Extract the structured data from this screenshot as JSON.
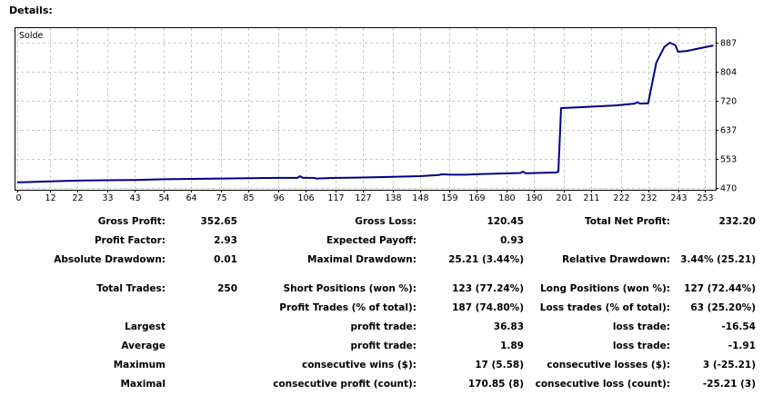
{
  "title": "Details:",
  "chart_data": {
    "type": "line",
    "title": "Solde",
    "series": [
      {
        "name": "Solde",
        "color": "#000080",
        "x": [
          0,
          12,
          22,
          43,
          54,
          75,
          96,
          103,
          104,
          105,
          109,
          110,
          117,
          127,
          138,
          148,
          155,
          156,
          160,
          165,
          170,
          185,
          186,
          187,
          195,
          198,
          199,
          200,
          210,
          220,
          227,
          228,
          229,
          232,
          235,
          238,
          240,
          242,
          243,
          246,
          256
        ],
        "y": [
          486,
          489,
          491,
          493,
          495,
          497,
          499,
          499,
          504,
          499,
          499,
          497,
          499,
          500,
          502,
          504,
          507,
          509,
          508,
          508,
          510,
          513,
          517,
          512,
          514,
          514,
          517,
          699,
          703,
          707,
          712,
          716,
          712,
          713,
          830,
          875,
          887,
          880,
          861,
          863,
          879
        ]
      }
    ],
    "xticks": [
      0,
      12,
      22,
      33,
      43,
      54,
      64,
      75,
      85,
      96,
      106,
      117,
      127,
      138,
      148,
      159,
      169,
      180,
      190,
      201,
      211,
      222,
      232,
      243,
      253
    ],
    "yticks": [
      470,
      553,
      637,
      720,
      804,
      887
    ],
    "xlim": [
      -1,
      257
    ],
    "ylim": [
      470,
      887
    ],
    "grid": true,
    "legend": "top-left"
  },
  "stats": {
    "rows": [
      [
        "Gross Profit:",
        "352.65",
        "Gross Loss:",
        "120.45",
        "Total Net Profit:",
        "232.20"
      ],
      [
        "Profit Factor:",
        "2.93",
        "Expected Payoff:",
        "0.93",
        "",
        ""
      ],
      [
        "Absolute Drawdown:",
        "0.01",
        "Maximal Drawdown:",
        "25.21 (3.44%)",
        "Relative Drawdown:",
        "3.44% (25.21)"
      ],
      [
        "Total Trades:",
        "250",
        "Short Positions (won %):",
        "123 (77.24%)",
        "Long Positions (won %):",
        "127 (72.44%)"
      ],
      [
        "",
        "",
        "Profit Trades (% of total):",
        "187 (74.80%)",
        "Loss trades (% of total):",
        "63 (25.20%)"
      ],
      [
        "Largest",
        "",
        "profit trade:",
        "36.83",
        "loss trade:",
        "-16.54"
      ],
      [
        "Average",
        "",
        "profit trade:",
        "1.89",
        "loss trade:",
        "-1.91"
      ],
      [
        "Maximum",
        "",
        "consecutive wins ($):",
        "17 (5.58)",
        "consecutive losses ($):",
        "3 (-25.21)"
      ],
      [
        "Maximal",
        "",
        "consecutive profit (count):",
        "170.85 (8)",
        "consecutive loss (count):",
        "-25.21 (3)"
      ]
    ]
  }
}
